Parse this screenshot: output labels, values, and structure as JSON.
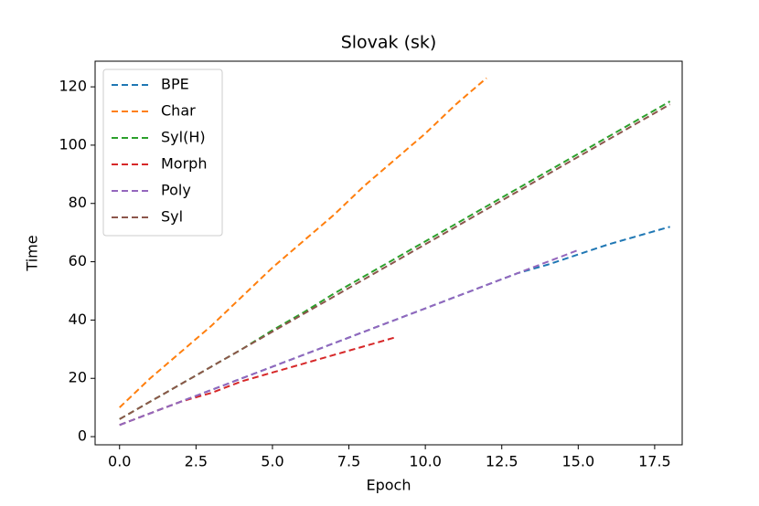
{
  "chart_data": {
    "type": "line",
    "title": "Slovak (sk)",
    "x_label": "Epoch",
    "y_label": "Time",
    "xlim": [
      -0.8,
      18.4
    ],
    "ylim": [
      -2.8,
      128.8
    ],
    "xticks": [
      {
        "value": 0,
        "label": "0.0"
      },
      {
        "value": 2.5,
        "label": "2.5"
      },
      {
        "value": 5,
        "label": "5.0"
      },
      {
        "value": 7.5,
        "label": "7.5"
      },
      {
        "value": 10,
        "label": "10.0"
      },
      {
        "value": 12.5,
        "label": "12.5"
      },
      {
        "value": 15,
        "label": "15.0"
      },
      {
        "value": 17.5,
        "label": "17.5"
      }
    ],
    "yticks": [
      0,
      20,
      40,
      60,
      80,
      100,
      120
    ],
    "legend": "upper left",
    "line_style": "dashed",
    "series": [
      {
        "name": "BPE",
        "color": "#1f77b4",
        "x": [
          0,
          1,
          2,
          3,
          4,
          5,
          6,
          7,
          8,
          9,
          10,
          11,
          12,
          13,
          14,
          15,
          16,
          17,
          18
        ],
        "values": [
          4,
          8,
          12,
          16,
          20,
          24,
          28,
          32,
          36,
          40,
          44,
          48,
          52,
          56,
          59,
          62.5,
          66,
          69,
          72
        ]
      },
      {
        "name": "Char",
        "color": "#ff7f0e",
        "x": [
          0,
          1,
          2,
          3,
          4,
          5,
          6,
          7,
          8,
          9,
          10,
          11,
          12
        ],
        "values": [
          10,
          20,
          29,
          38,
          48,
          58,
          67,
          76,
          86,
          95,
          104,
          114,
          123
        ]
      },
      {
        "name": "Syl(H)",
        "color": "#2ca02c",
        "x": [
          0,
          1,
          2,
          3,
          4,
          5,
          6,
          7,
          8,
          9,
          10,
          11,
          12,
          13,
          14,
          15,
          16,
          17,
          18
        ],
        "values": [
          6,
          12,
          18,
          24,
          30,
          36.5,
          42.5,
          49,
          55,
          61,
          67,
          73,
          79,
          85,
          91,
          97,
          103,
          109,
          115
        ]
      },
      {
        "name": "Morph",
        "color": "#d62728",
        "x": [
          0,
          1,
          2,
          3,
          4,
          5,
          6,
          7,
          8,
          9
        ],
        "values": [
          4,
          8,
          12,
          15,
          19,
          22,
          25,
          28,
          31,
          34
        ]
      },
      {
        "name": "Poly",
        "color": "#9467bd",
        "x": [
          0,
          1,
          2,
          3,
          4,
          5,
          6,
          7,
          8,
          9,
          10,
          11,
          12,
          13,
          14,
          15
        ],
        "values": [
          4,
          8,
          12,
          16,
          20,
          24,
          28,
          32,
          36,
          40,
          44,
          48,
          52,
          56,
          60,
          64
        ]
      },
      {
        "name": "Syl",
        "color": "#8c564b",
        "x": [
          0,
          1,
          2,
          3,
          4,
          5,
          6,
          7,
          8,
          9,
          10,
          11,
          12,
          13,
          14,
          15,
          16,
          17,
          18
        ],
        "values": [
          6,
          12,
          18,
          24,
          30,
          36,
          42,
          48,
          54,
          60,
          66,
          72,
          78,
          84,
          90,
          96,
          102,
          108,
          114
        ]
      }
    ]
  }
}
